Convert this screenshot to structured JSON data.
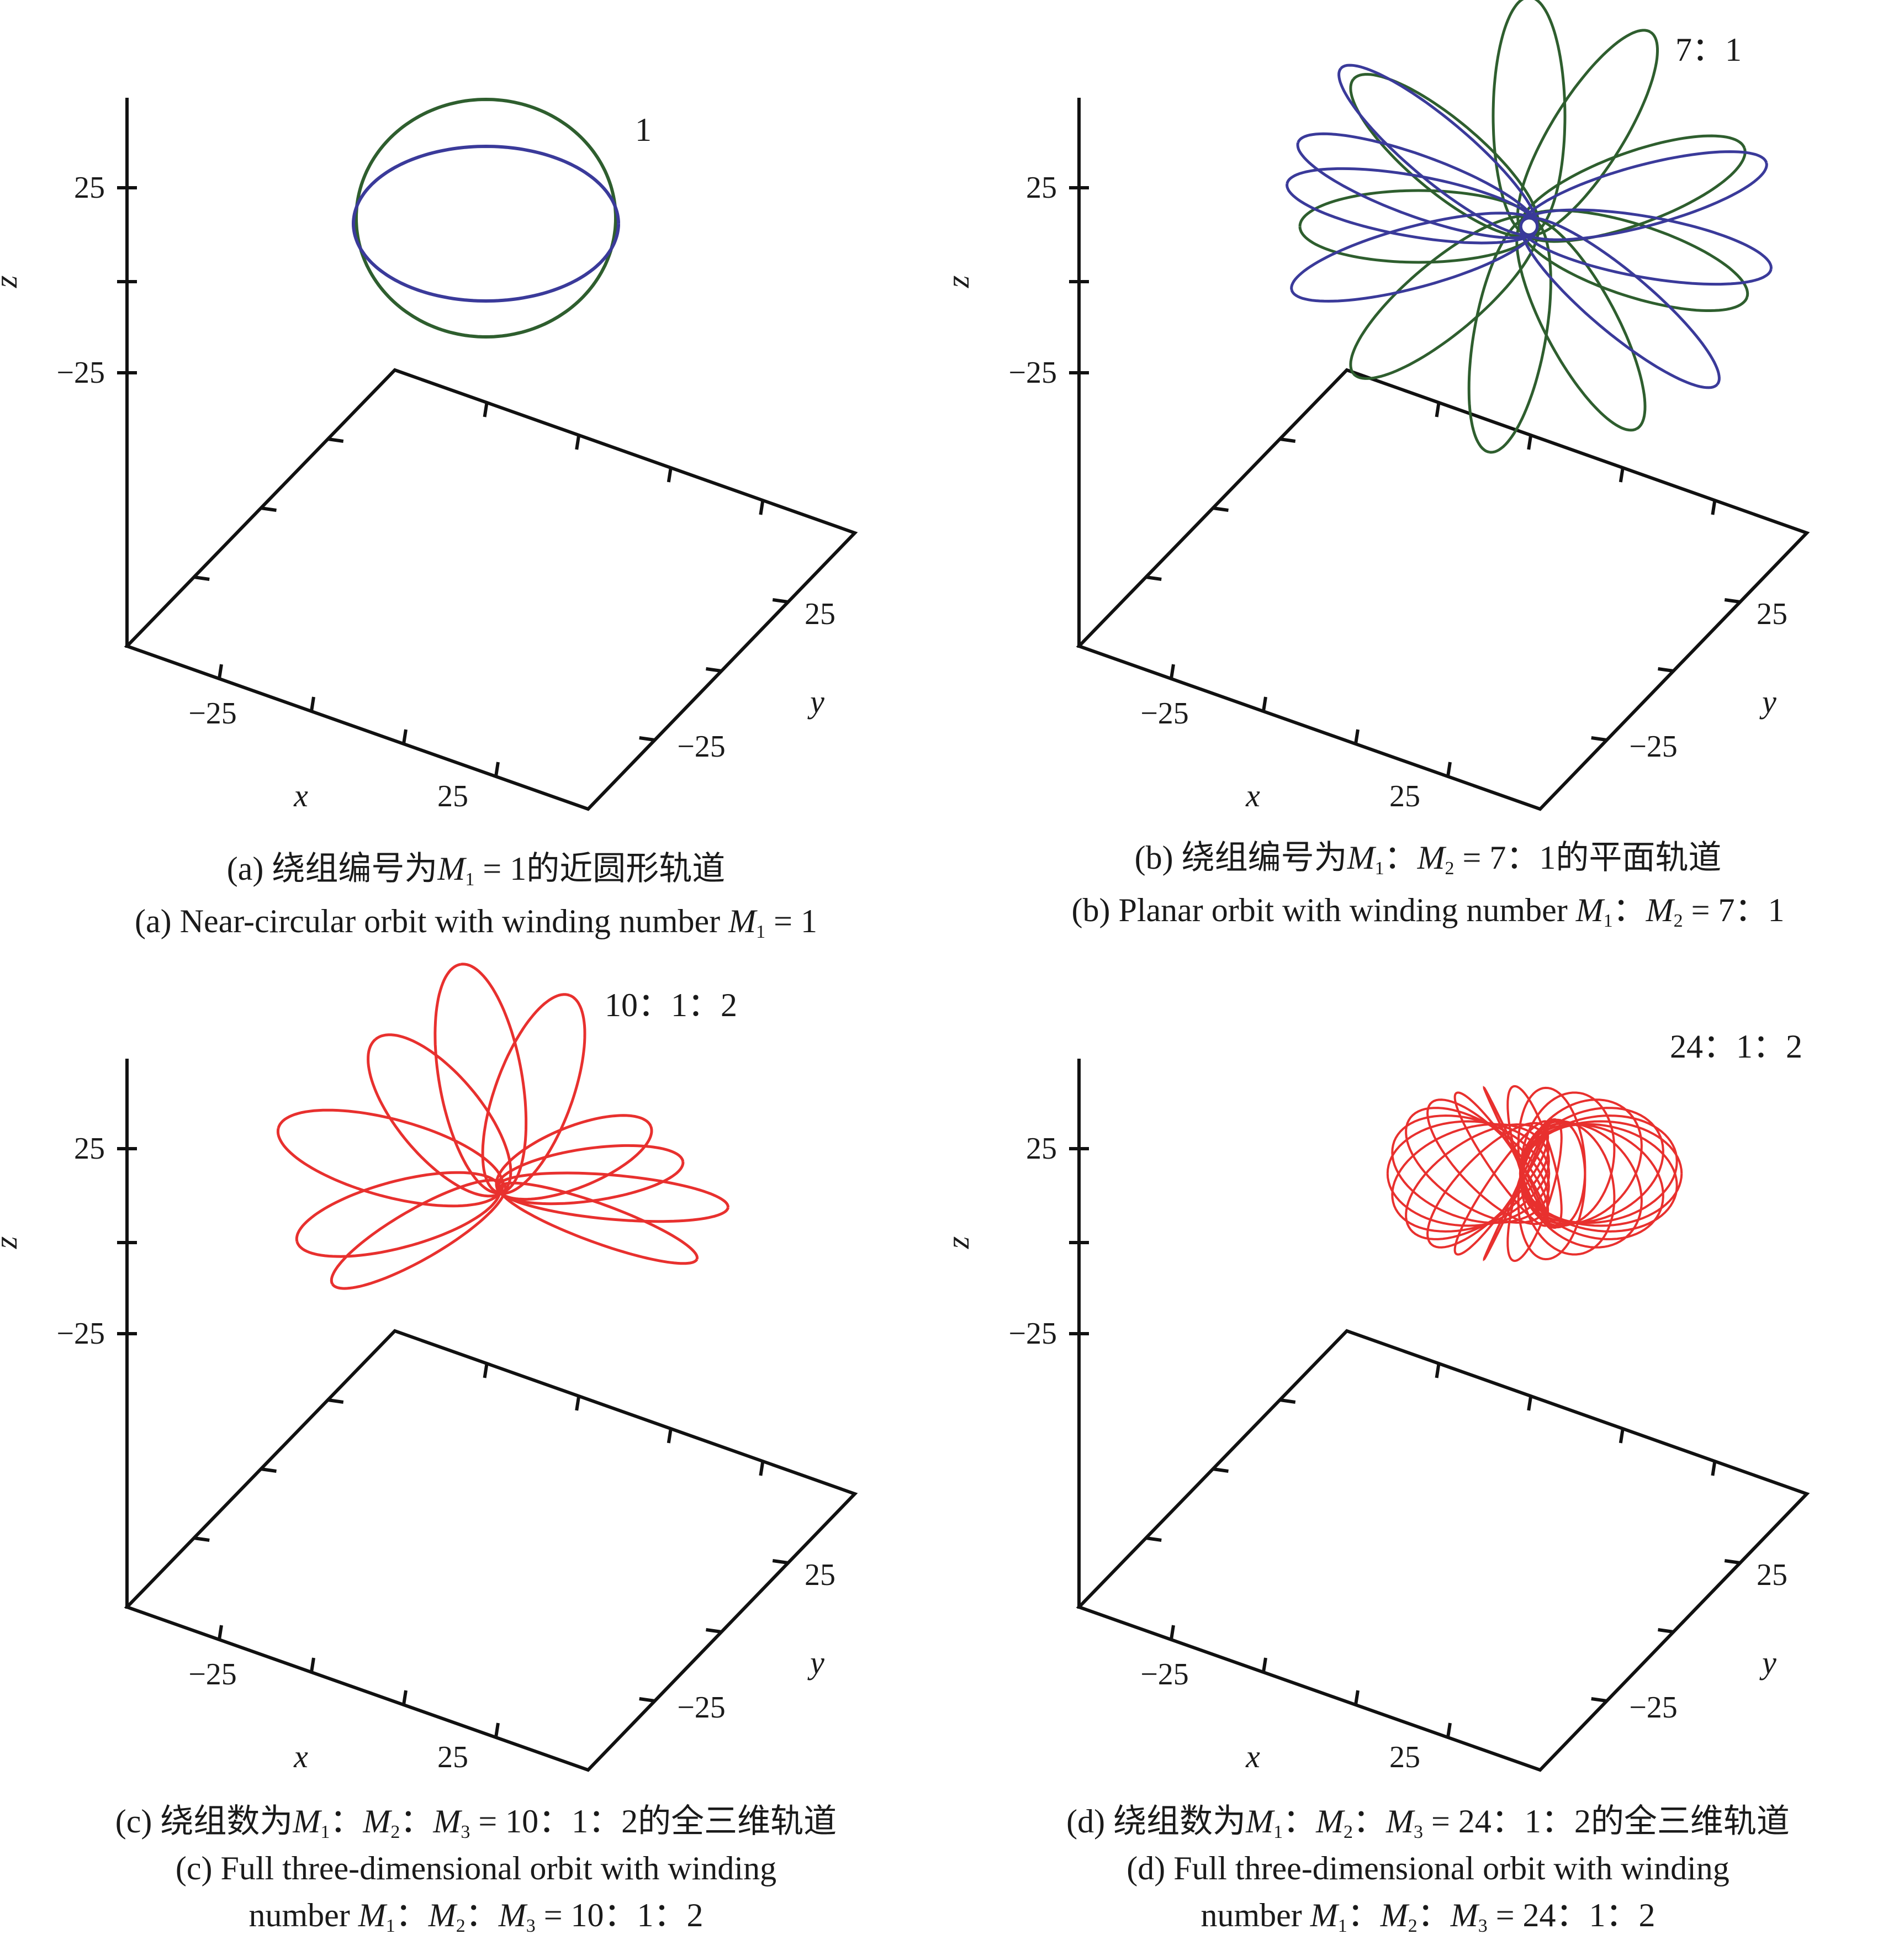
{
  "chart_data": [
    {
      "type": "line",
      "panel": "a",
      "ratio_label": "1",
      "axes": {
        "x": {
          "label": "x",
          "ticks": [
            "−25",
            "25"
          ]
        },
        "y": {
          "label": "y",
          "ticks": [
            "−25",
            "25"
          ]
        },
        "z": {
          "label": "z",
          "ticks": [
            "−25",
            "25"
          ]
        }
      },
      "series": [
        {
          "color": "#2e5e2e",
          "curve": "circle",
          "radius": 32,
          "freq": [
            1
          ]
        },
        {
          "color": "#3a3a9a",
          "curve": "ellipse",
          "radius": 35,
          "freq": [
            1
          ]
        }
      ]
    },
    {
      "type": "line",
      "panel": "b",
      "ratio_label": "7：1",
      "axes": {
        "x": {
          "label": "x",
          "ticks": [
            "−25",
            "25"
          ]
        },
        "y": {
          "label": "y",
          "ticks": [
            "−25",
            "25"
          ]
        },
        "z": {
          "label": "z",
          "ticks": [
            "−25",
            "25"
          ]
        }
      },
      "series": [
        {
          "color": "#2e5e2e",
          "curve": "rosette",
          "petals": 7,
          "radius": 40
        },
        {
          "color": "#3a3a9a",
          "curve": "rosette",
          "petals": 7,
          "radius": 40
        }
      ]
    },
    {
      "type": "line",
      "panel": "c",
      "ratio_label": "10：1：2",
      "axes": {
        "x": {
          "label": "x",
          "ticks": [
            "−25",
            "25"
          ]
        },
        "y": {
          "label": "y",
          "ticks": [
            "−25",
            "25"
          ]
        },
        "z": {
          "label": "z",
          "ticks": [
            "−25",
            "25"
          ]
        }
      },
      "series": [
        {
          "color": "#e8302e",
          "curve": "3d-orbit",
          "winding": [
            10,
            1,
            2
          ],
          "radius": 40
        }
      ]
    },
    {
      "type": "line",
      "panel": "d",
      "ratio_label": "24：1：2",
      "axes": {
        "x": {
          "label": "x",
          "ticks": [
            "−25",
            "25"
          ]
        },
        "y": {
          "label": "y",
          "ticks": [
            "−25",
            "25"
          ]
        },
        "z": {
          "label": "z",
          "ticks": [
            "−25",
            "25"
          ]
        }
      },
      "series": [
        {
          "color": "#e8302e",
          "curve": "3d-orbit",
          "winding": [
            24,
            1,
            2
          ],
          "radius": 40
        }
      ]
    }
  ],
  "captions": {
    "a": {
      "cn_prefix": "(a) 绕组编号为",
      "cn_formula_var": "M",
      "cn_formula_sub": "1",
      "cn_suffix": " = 1的近圆形轨道",
      "en_prefix": "(a) Near-circular orbit with winding number ",
      "en_var": "M",
      "en_sub": "1",
      "en_suffix": " = 1"
    },
    "b": {
      "cn_prefix": "(b) 绕组编号为",
      "cn_suffix": " = 7：1的平面轨道",
      "en_prefix": "(b) Planar orbit with winding number ",
      "en_suffix": " = 7：1"
    },
    "c": {
      "cn_prefix": "(c) 绕组数为",
      "cn_suffix": " = 10：1：2的全三维轨道",
      "en_line1": "(c) Full three-dimensional orbit with winding",
      "en_prefix": "number ",
      "en_suffix": " = 10：1：2"
    },
    "d": {
      "cn_prefix": "(d) 绕组数为",
      "cn_suffix": " = 24：1：2的全三维轨道",
      "en_line1": "(d) Full three-dimensional orbit with winding",
      "en_prefix": "number ",
      "en_suffix": " = 24：1：2"
    }
  },
  "formula": {
    "var": "M",
    "subs": [
      "1",
      "2",
      "3"
    ],
    "sep": "："
  }
}
